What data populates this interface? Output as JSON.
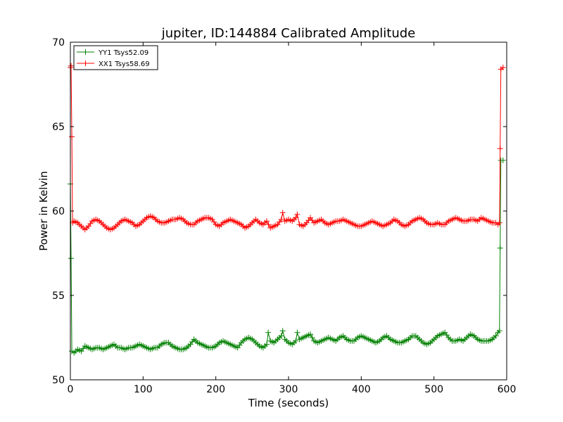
{
  "chart_data": {
    "type": "line",
    "title": "jupiter, ID:144884 Calibrated Amplitude",
    "xlabel": "Time (seconds)",
    "ylabel": "Power in Kelvin",
    "xlim": [
      0,
      600
    ],
    "ylim": [
      50,
      70
    ],
    "xticks": [
      0,
      100,
      200,
      300,
      400,
      500,
      600
    ],
    "yticks": [
      50,
      55,
      60,
      65,
      70
    ],
    "xtick_labels": [
      "0",
      "100",
      "200",
      "300",
      "400",
      "500",
      "600"
    ],
    "ytick_labels": [
      "50",
      "55",
      "60",
      "65",
      "70"
    ],
    "grid": false,
    "legend_position": "upper-left",
    "series": [
      {
        "name": "YY1 Tsys52.09",
        "color": "#008000",
        "marker": "+",
        "points": [
          [
            0,
            61.6
          ],
          [
            1,
            57.2
          ],
          [
            2,
            51.7
          ],
          [
            5,
            51.6
          ],
          [
            10,
            51.8
          ],
          [
            15,
            51.7
          ],
          [
            20,
            52.0
          ],
          [
            25,
            51.9
          ],
          [
            30,
            51.8
          ],
          [
            35,
            51.9
          ],
          [
            40,
            51.9
          ],
          [
            45,
            51.8
          ],
          [
            50,
            51.9
          ],
          [
            55,
            52.0
          ],
          [
            60,
            52.1
          ],
          [
            65,
            51.9
          ],
          [
            70,
            51.9
          ],
          [
            75,
            51.8
          ],
          [
            80,
            51.9
          ],
          [
            85,
            51.9
          ],
          [
            90,
            52.0
          ],
          [
            95,
            52.1
          ],
          [
            100,
            52.0
          ],
          [
            105,
            51.9
          ],
          [
            110,
            51.8
          ],
          [
            115,
            51.9
          ],
          [
            120,
            51.9
          ],
          [
            125,
            52.1
          ],
          [
            130,
            52.2
          ],
          [
            135,
            52.2
          ],
          [
            140,
            52.0
          ],
          [
            145,
            51.9
          ],
          [
            150,
            51.8
          ],
          [
            155,
            51.8
          ],
          [
            160,
            51.9
          ],
          [
            165,
            52.1
          ],
          [
            170,
            52.4
          ],
          [
            175,
            52.2
          ],
          [
            180,
            52.1
          ],
          [
            185,
            52.0
          ],
          [
            190,
            51.9
          ],
          [
            195,
            51.9
          ],
          [
            200,
            52.0
          ],
          [
            205,
            52.2
          ],
          [
            210,
            52.3
          ],
          [
            215,
            52.2
          ],
          [
            220,
            52.1
          ],
          [
            225,
            52.0
          ],
          [
            230,
            51.9
          ],
          [
            235,
            52.2
          ],
          [
            240,
            52.4
          ],
          [
            245,
            52.5
          ],
          [
            250,
            52.4
          ],
          [
            255,
            52.2
          ],
          [
            260,
            52.0
          ],
          [
            265,
            51.9
          ],
          [
            270,
            52.1
          ],
          [
            272,
            52.8
          ],
          [
            275,
            52.3
          ],
          [
            280,
            52.2
          ],
          [
            285,
            52.4
          ],
          [
            290,
            52.6
          ],
          [
            292,
            52.9
          ],
          [
            295,
            52.4
          ],
          [
            300,
            52.2
          ],
          [
            305,
            52.1
          ],
          [
            310,
            52.3
          ],
          [
            312,
            52.8
          ],
          [
            315,
            52.4
          ],
          [
            320,
            52.5
          ],
          [
            325,
            52.6
          ],
          [
            330,
            52.7
          ],
          [
            335,
            52.3
          ],
          [
            340,
            52.2
          ],
          [
            345,
            52.3
          ],
          [
            350,
            52.4
          ],
          [
            355,
            52.5
          ],
          [
            360,
            52.4
          ],
          [
            365,
            52.3
          ],
          [
            370,
            52.5
          ],
          [
            375,
            52.6
          ],
          [
            380,
            52.4
          ],
          [
            385,
            52.3
          ],
          [
            390,
            52.3
          ],
          [
            395,
            52.5
          ],
          [
            400,
            52.6
          ],
          [
            405,
            52.5
          ],
          [
            410,
            52.4
          ],
          [
            415,
            52.3
          ],
          [
            420,
            52.2
          ],
          [
            425,
            52.3
          ],
          [
            430,
            52.5
          ],
          [
            435,
            52.6
          ],
          [
            440,
            52.4
          ],
          [
            445,
            52.3
          ],
          [
            450,
            52.2
          ],
          [
            455,
            52.2
          ],
          [
            460,
            52.3
          ],
          [
            465,
            52.4
          ],
          [
            470,
            52.6
          ],
          [
            475,
            52.6
          ],
          [
            480,
            52.4
          ],
          [
            485,
            52.2
          ],
          [
            490,
            52.1
          ],
          [
            495,
            52.2
          ],
          [
            500,
            52.4
          ],
          [
            505,
            52.6
          ],
          [
            510,
            52.7
          ],
          [
            515,
            52.8
          ],
          [
            520,
            52.5
          ],
          [
            525,
            52.3
          ],
          [
            530,
            52.3
          ],
          [
            535,
            52.4
          ],
          [
            540,
            52.3
          ],
          [
            545,
            52.5
          ],
          [
            550,
            52.7
          ],
          [
            555,
            52.6
          ],
          [
            560,
            52.4
          ],
          [
            565,
            52.3
          ],
          [
            570,
            52.3
          ],
          [
            575,
            52.3
          ],
          [
            580,
            52.4
          ],
          [
            585,
            52.6
          ],
          [
            588,
            52.8
          ],
          [
            590,
            52.9
          ],
          [
            591,
            57.8
          ],
          [
            592,
            63.0
          ],
          [
            595,
            63.0
          ]
        ]
      },
      {
        "name": "XX1 Tsys58.69",
        "color": "#ff0000",
        "marker": "+",
        "points": [
          [
            0,
            68.5
          ],
          [
            1,
            68.6
          ],
          [
            2,
            64.4
          ],
          [
            3,
            59.3
          ],
          [
            5,
            59.4
          ],
          [
            10,
            59.3
          ],
          [
            15,
            59.1
          ],
          [
            20,
            58.9
          ],
          [
            25,
            59.1
          ],
          [
            30,
            59.4
          ],
          [
            35,
            59.5
          ],
          [
            40,
            59.4
          ],
          [
            45,
            59.2
          ],
          [
            50,
            59.0
          ],
          [
            55,
            58.9
          ],
          [
            60,
            59.0
          ],
          [
            65,
            59.2
          ],
          [
            70,
            59.4
          ],
          [
            75,
            59.5
          ],
          [
            80,
            59.4
          ],
          [
            85,
            59.3
          ],
          [
            90,
            59.1
          ],
          [
            95,
            59.2
          ],
          [
            100,
            59.4
          ],
          [
            105,
            59.6
          ],
          [
            110,
            59.7
          ],
          [
            115,
            59.6
          ],
          [
            120,
            59.4
          ],
          [
            125,
            59.3
          ],
          [
            130,
            59.3
          ],
          [
            135,
            59.4
          ],
          [
            140,
            59.5
          ],
          [
            145,
            59.5
          ],
          [
            150,
            59.6
          ],
          [
            155,
            59.5
          ],
          [
            160,
            59.3
          ],
          [
            165,
            59.2
          ],
          [
            170,
            59.2
          ],
          [
            175,
            59.4
          ],
          [
            180,
            59.5
          ],
          [
            185,
            59.6
          ],
          [
            190,
            59.6
          ],
          [
            195,
            59.5
          ],
          [
            200,
            59.2
          ],
          [
            205,
            59.1
          ],
          [
            210,
            59.3
          ],
          [
            215,
            59.4
          ],
          [
            220,
            59.5
          ],
          [
            225,
            59.4
          ],
          [
            230,
            59.3
          ],
          [
            235,
            59.2
          ],
          [
            240,
            59.0
          ],
          [
            245,
            59.1
          ],
          [
            250,
            59.3
          ],
          [
            255,
            59.5
          ],
          [
            260,
            59.3
          ],
          [
            265,
            59.2
          ],
          [
            270,
            59.4
          ],
          [
            275,
            59.0
          ],
          [
            280,
            59.1
          ],
          [
            285,
            59.2
          ],
          [
            290,
            59.5
          ],
          [
            292,
            59.9
          ],
          [
            295,
            59.4
          ],
          [
            300,
            59.5
          ],
          [
            305,
            59.4
          ],
          [
            310,
            59.6
          ],
          [
            312,
            59.8
          ],
          [
            315,
            59.2
          ],
          [
            320,
            59.1
          ],
          [
            325,
            59.3
          ],
          [
            330,
            59.6
          ],
          [
            335,
            59.3
          ],
          [
            340,
            59.4
          ],
          [
            345,
            59.5
          ],
          [
            350,
            59.3
          ],
          [
            355,
            59.2
          ],
          [
            360,
            59.3
          ],
          [
            365,
            59.4
          ],
          [
            370,
            59.4
          ],
          [
            375,
            59.5
          ],
          [
            380,
            59.4
          ],
          [
            385,
            59.3
          ],
          [
            390,
            59.2
          ],
          [
            395,
            59.1
          ],
          [
            400,
            59.1
          ],
          [
            405,
            59.2
          ],
          [
            410,
            59.3
          ],
          [
            415,
            59.4
          ],
          [
            420,
            59.3
          ],
          [
            425,
            59.2
          ],
          [
            430,
            59.1
          ],
          [
            435,
            59.2
          ],
          [
            440,
            59.3
          ],
          [
            445,
            59.5
          ],
          [
            450,
            59.4
          ],
          [
            455,
            59.2
          ],
          [
            460,
            59.1
          ],
          [
            465,
            59.2
          ],
          [
            470,
            59.4
          ],
          [
            475,
            59.5
          ],
          [
            480,
            59.6
          ],
          [
            485,
            59.5
          ],
          [
            490,
            59.3
          ],
          [
            495,
            59.2
          ],
          [
            500,
            59.2
          ],
          [
            505,
            59.3
          ],
          [
            510,
            59.2
          ],
          [
            515,
            59.2
          ],
          [
            520,
            59.4
          ],
          [
            525,
            59.5
          ],
          [
            530,
            59.6
          ],
          [
            535,
            59.5
          ],
          [
            540,
            59.4
          ],
          [
            545,
            59.4
          ],
          [
            550,
            59.5
          ],
          [
            555,
            59.5
          ],
          [
            560,
            59.4
          ],
          [
            565,
            59.6
          ],
          [
            570,
            59.5
          ],
          [
            575,
            59.4
          ],
          [
            580,
            59.3
          ],
          [
            585,
            59.3
          ],
          [
            588,
            59.2
          ],
          [
            590,
            59.3
          ],
          [
            591,
            63.7
          ],
          [
            592,
            68.4
          ],
          [
            595,
            68.5
          ]
        ]
      }
    ]
  }
}
